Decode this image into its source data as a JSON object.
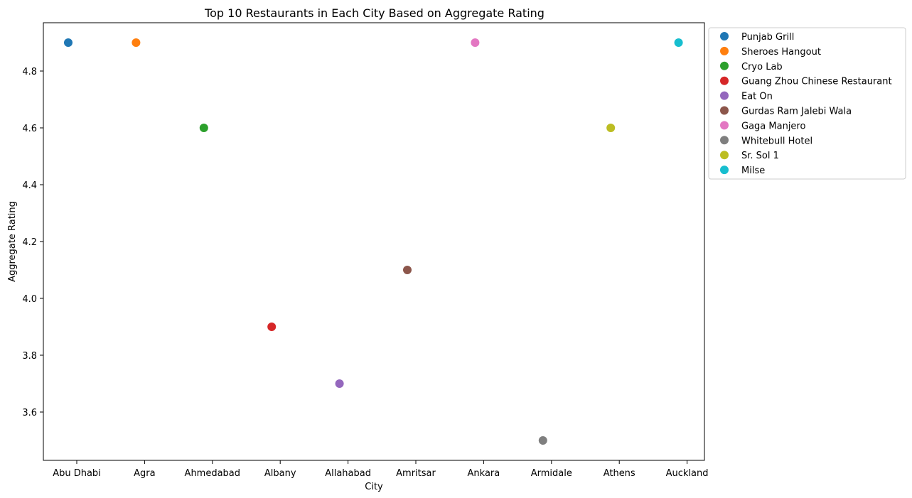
{
  "chart_data": {
    "type": "scatter",
    "title": "Top 10 Restaurants in Each City Based on Aggregate Rating",
    "xlabel": "City",
    "ylabel": "Aggregate Rating",
    "categories": [
      "Abu Dhabi",
      "Agra",
      "Ahmedabad",
      "Albany",
      "Allahabad",
      "Amritsar",
      "Ankara",
      "Armidale",
      "Athens",
      "Auckland"
    ],
    "ylim": [
      3.43,
      4.97
    ],
    "yticks": [
      3.6,
      3.8,
      4.0,
      4.2,
      4.4,
      4.6,
      4.8
    ],
    "ytick_labels": [
      "3.6",
      "3.8",
      "4.0",
      "4.2",
      "4.4",
      "4.6",
      "4.8"
    ],
    "grid": false,
    "legend_placement": "outside-upper-right",
    "series": [
      {
        "name": "Punjab Grill",
        "color": "#1f77b4",
        "points": [
          {
            "x": "Abu Dhabi",
            "y": 4.9
          }
        ]
      },
      {
        "name": "Sheroes Hangout",
        "color": "#ff7f0e",
        "points": [
          {
            "x": "Agra",
            "y": 4.9
          }
        ]
      },
      {
        "name": "Cryo Lab",
        "color": "#2ca02c",
        "points": [
          {
            "x": "Ahmedabad",
            "y": 4.6
          }
        ]
      },
      {
        "name": "Guang Zhou Chinese Restaurant",
        "color": "#d62728",
        "points": [
          {
            "x": "Albany",
            "y": 3.9
          }
        ]
      },
      {
        "name": "Eat On",
        "color": "#9467bd",
        "points": [
          {
            "x": "Allahabad",
            "y": 3.7
          }
        ]
      },
      {
        "name": "Gurdas Ram Jalebi Wala",
        "color": "#8c564b",
        "points": [
          {
            "x": "Amritsar",
            "y": 4.1
          }
        ]
      },
      {
        "name": "Gaga Manjero",
        "color": "#e377c2",
        "points": [
          {
            "x": "Ankara",
            "y": 4.9
          }
        ]
      },
      {
        "name": "Whitebull Hotel",
        "color": "#7f7f7f",
        "points": [
          {
            "x": "Armidale",
            "y": 3.5
          }
        ]
      },
      {
        "name": "Sr. Sol 1",
        "color": "#bcbd22",
        "points": [
          {
            "x": "Athens",
            "y": 4.6
          }
        ]
      },
      {
        "name": "Milse",
        "color": "#17becf",
        "points": [
          {
            "x": "Auckland",
            "y": 4.9
          }
        ]
      }
    ]
  }
}
